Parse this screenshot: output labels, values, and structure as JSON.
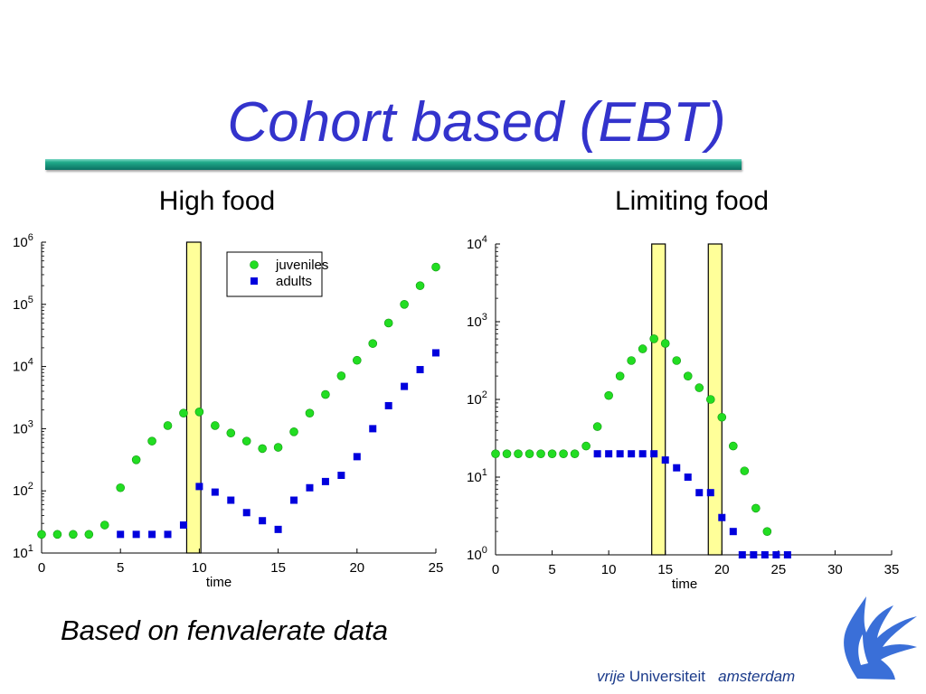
{
  "slide": {
    "title": "Cohort based (EBT)",
    "footnote": "Based on fenvalerate data",
    "logo_text": {
      "part1": "vrije",
      "part2": "Universiteit",
      "part3": "amsterdam"
    }
  },
  "colors": {
    "title": "#3333cc",
    "juveniles": "#22dd22",
    "adults": "#0000dd",
    "highlight": "#ffff99"
  },
  "chart_data": [
    {
      "type": "scatter",
      "title": "High food",
      "xlabel": "time",
      "ylabel": "",
      "xlim": [
        0,
        25
      ],
      "ylim": [
        1,
        6
      ],
      "yscale": "log10",
      "x_ticks": [
        0,
        5,
        10,
        15,
        20,
        25
      ],
      "y_ticks": [
        1,
        2,
        3,
        4,
        5,
        6
      ],
      "y_tick_base": "10",
      "legend": {
        "position": "top-right",
        "entries": [
          "juveniles",
          "adults"
        ]
      },
      "highlight_bands": [
        [
          9.2,
          10.1
        ]
      ],
      "series": [
        {
          "name": "juveniles",
          "marker": "circle",
          "x": [
            0,
            1,
            2,
            3,
            4,
            5,
            6,
            7,
            8,
            9,
            10,
            11,
            12,
            13,
            14,
            15,
            16,
            17,
            18,
            19,
            20,
            21,
            22,
            23,
            24,
            25
          ],
          "y": [
            1.3,
            1.3,
            1.3,
            1.3,
            1.45,
            2.05,
            2.5,
            2.8,
            3.05,
            3.25,
            3.27,
            3.05,
            2.93,
            2.8,
            2.68,
            2.7,
            2.95,
            3.25,
            3.55,
            3.85,
            4.1,
            4.37,
            4.7,
            5.0,
            5.3,
            5.6
          ]
        },
        {
          "name": "adults",
          "marker": "square",
          "x": [
            5,
            6,
            7,
            8,
            9,
            10,
            11,
            12,
            13,
            14,
            15,
            16,
            17,
            18,
            19,
            20,
            21,
            22,
            23,
            24,
            25
          ],
          "y": [
            1.3,
            1.3,
            1.3,
            1.3,
            1.45,
            2.07,
            1.98,
            1.85,
            1.65,
            1.52,
            1.38,
            1.85,
            2.05,
            2.15,
            2.25,
            2.55,
            3.0,
            3.37,
            3.68,
            3.95,
            4.22
          ]
        }
      ]
    },
    {
      "type": "scatter",
      "title": "Limiting food",
      "xlabel": "time",
      "ylabel": "",
      "xlim": [
        0,
        35
      ],
      "ylim": [
        0,
        4
      ],
      "yscale": "log10",
      "x_ticks": [
        0,
        5,
        10,
        15,
        20,
        25,
        30,
        35
      ],
      "y_ticks": [
        0,
        1,
        2,
        3,
        4
      ],
      "y_tick_base": "10",
      "highlight_bands": [
        [
          13.8,
          15
        ],
        [
          18.8,
          20
        ]
      ],
      "series": [
        {
          "name": "juveniles",
          "marker": "circle",
          "x": [
            0,
            1,
            2,
            3,
            4,
            5,
            6,
            7,
            8,
            9,
            10,
            11,
            12,
            13,
            14,
            15,
            16,
            17,
            18,
            19,
            20,
            21,
            22,
            23,
            24
          ],
          "y": [
            1.3,
            1.3,
            1.3,
            1.3,
            1.3,
            1.3,
            1.3,
            1.3,
            1.4,
            1.65,
            2.05,
            2.3,
            2.5,
            2.65,
            2.78,
            2.72,
            2.5,
            2.3,
            2.15,
            2.0,
            1.77,
            1.4,
            1.08,
            0.6,
            0.3
          ]
        },
        {
          "name": "adults",
          "marker": "square",
          "x": [
            9,
            10,
            11,
            12,
            13,
            14,
            15,
            16,
            17,
            18,
            19,
            20,
            21,
            21.8,
            22.8,
            23.8,
            24.8,
            25.8
          ],
          "y": [
            1.3,
            1.3,
            1.3,
            1.3,
            1.3,
            1.3,
            1.22,
            1.12,
            1.0,
            0.8,
            0.8,
            0.48,
            0.3,
            0.0,
            0.0,
            0.0,
            0.0,
            0.0
          ]
        }
      ]
    }
  ]
}
